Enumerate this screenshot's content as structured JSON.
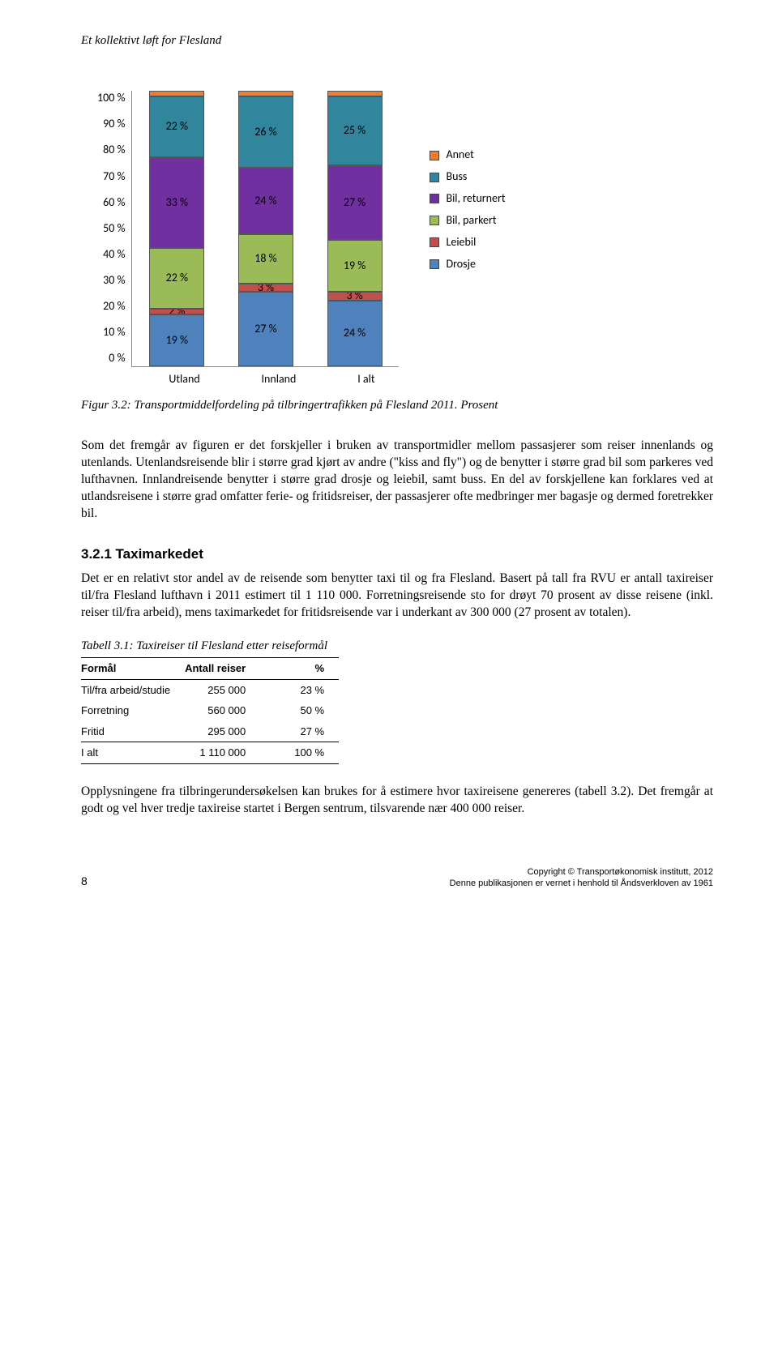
{
  "running_head": "Et kollektivt løft for Flesland",
  "chart": {
    "type": "stacked-bar",
    "y_ticks": [
      "100 %",
      "90 %",
      "80 %",
      "70 %",
      "60 %",
      "50 %",
      "40 %",
      "30 %",
      "20 %",
      "10 %",
      "0 %"
    ],
    "categories": [
      "Utland",
      "Innland",
      "I alt"
    ],
    "series_order": [
      "Drosje",
      "Leiebil",
      "Bil, parkert",
      "Bil, returnert",
      "Buss",
      "Annet"
    ],
    "colors": {
      "Annet": "#ed7d31",
      "Buss": "#31859c",
      "Bil, returnert": "#7030a0",
      "Bil, parkert": "#9bbb59",
      "Leiebil": "#c0504d",
      "Drosje": "#4f81bd"
    },
    "legend_order": [
      "Annet",
      "Buss",
      "Bil, returnert",
      "Bil, parkert",
      "Leiebil",
      "Drosje"
    ],
    "values": {
      "Utland": {
        "Drosje": 19,
        "Leiebil": 2,
        "Bil, parkert": 22,
        "Bil, returnert": 33,
        "Buss": 22,
        "Annet": 2
      },
      "Innland": {
        "Drosje": 27,
        "Leiebil": 3,
        "Bil, parkert": 18,
        "Bil, returnert": 24,
        "Buss": 26,
        "Annet": 2
      },
      "I alt": {
        "Drosje": 24,
        "Leiebil": 3,
        "Bil, parkert": 19,
        "Bil, returnert": 27,
        "Buss": 25,
        "Annet": 2
      }
    },
    "labels": {
      "Utland": {
        "Drosje": "19 %",
        "Leiebil": "2 %",
        "Bil, parkert": "22 %",
        "Bil, returnert": "33 %",
        "Buss": "22 %"
      },
      "Innland": {
        "Drosje": "27 %",
        "Leiebil": "3 %",
        "Bil, parkert": "18 %",
        "Bil, returnert": "24 %",
        "Buss": "26 %"
      },
      "I alt": {
        "Drosje": "24 %",
        "Leiebil": "3 %",
        "Bil, parkert": "19 %",
        "Bil, returnert": "27 %",
        "Buss": "25 %"
      }
    }
  },
  "fig_caption": "Figur 3.2: Transportmiddelfordeling på tilbringertrafikken på Flesland 2011. Prosent",
  "para1": "Som det fremgår av figuren er det forskjeller i bruken av transportmidler mellom passasjerer som reiser innenlands og utenlands. Utenlandsreisende blir i større grad kjørt av andre (\"kiss and fly\") og de benytter i større grad bil som parkeres ved lufthavnen. Innlandreisende benytter i større grad drosje og leiebil, samt buss. En del av forskjellene kan forklares ved at utlandsreisene i større grad omfatter ferie- og fritidsreiser, der passasjerer ofte medbringer mer bagasje og dermed foretrekker bil.",
  "subhead": "3.2.1  Taximarkedet",
  "para2": "Det er en relativt stor andel av de reisende som benytter taxi til og fra Flesland. Basert på tall fra RVU er antall taxireiser til/fra Flesland lufthavn i 2011 estimert til 1 110 000. Forretningsreisende sto for drøyt 70 prosent av disse reisene (inkl. reiser til/fra arbeid), mens taximarkedet for fritidsreisende var i underkant av 300 000 (27 prosent av totalen).",
  "tbl_caption": "Tabell 3.1: Taxireiser til Flesland etter reiseformål",
  "table": {
    "columns": [
      "Formål",
      "Antall reiser",
      "%"
    ],
    "rows": [
      [
        "Til/fra arbeid/studie",
        "255 000",
        "23 %"
      ],
      [
        "Forretning",
        "560 000",
        "50 %"
      ],
      [
        "Fritid",
        "295 000",
        "27 %"
      ]
    ],
    "total": [
      "I alt",
      "1 110 000",
      "100 %"
    ]
  },
  "para3": "Opplysningene fra tilbringerundersøkelsen kan brukes for å estimere hvor taxireisene genereres (tabell 3.2). Det fremgår at godt og vel hver tredje taxireise startet i Bergen sentrum, tilsvarende nær 400 000 reiser.",
  "footer": {
    "page": "8",
    "copy1": "Copyright © Transportøkonomisk institutt, 2012",
    "copy2": "Denne publikasjonen er vernet i henhold til Åndsverkloven av 1961"
  }
}
